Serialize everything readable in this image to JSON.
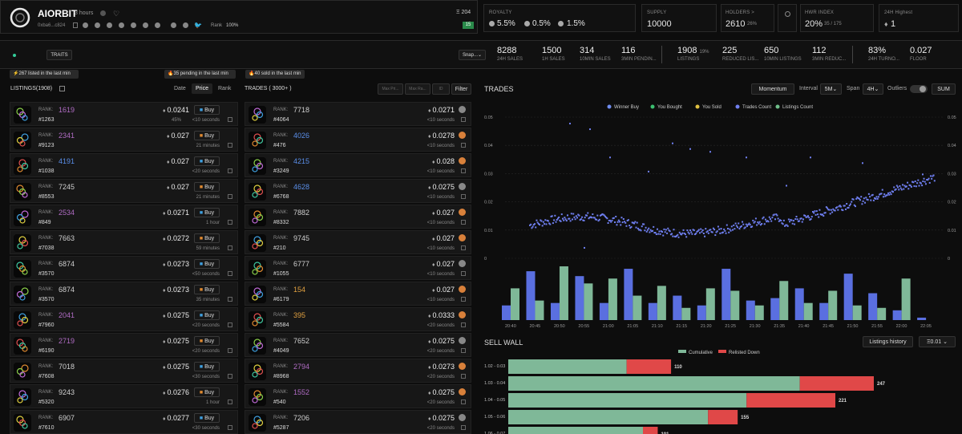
{
  "header": {
    "name": "AIORBIT",
    "age": "3 hours",
    "address": "0xba6...c824",
    "rank_label": "Rank",
    "rank_value": "100%",
    "count_label": "Ξ 204",
    "count_badge": "15"
  },
  "stats": {
    "royalty": {
      "label": "ROYALTY",
      "v1": "5.5%",
      "v2": "0.5%",
      "v3": "1.5%"
    },
    "supply": {
      "label": "SUPPLY",
      "value": "10000"
    },
    "holders": {
      "label": "HOLDERS >",
      "value": "2610",
      "sub": "26%"
    },
    "hwr": {
      "label": "HWR INDEX",
      "value": "20%",
      "sub": "35 / 175"
    },
    "high": {
      "label": "24H Highest",
      "value": "1"
    }
  },
  "toolbar": {
    "traits_label": "TRAITS",
    "snap_label": "Snap..."
  },
  "metrics": [
    {
      "value": "8288",
      "label": "24H SALES"
    },
    {
      "value": "1500",
      "label": "1H SALES"
    },
    {
      "value": "314",
      "label": "10MIN SALES"
    },
    {
      "value": "116",
      "label": "3MIN PENDIN..."
    },
    {
      "value": "1908",
      "sub": "19%",
      "label": "LISTINGS"
    },
    {
      "value": "225",
      "label": "REDUCED LIS..."
    },
    {
      "value": "650",
      "label": "10MIN LISTINGS"
    },
    {
      "value": "112",
      "label": "3MIN REDUC..."
    },
    {
      "value": "83%",
      "label": "24H TURNO..."
    },
    {
      "value": "0.027",
      "label": "FLOOR"
    }
  ],
  "alerts": {
    "listed": "267 listed in the last min",
    "pending": "35 pending in the last min",
    "sold": "40 sold in the last min"
  },
  "listings": {
    "title": "LISTINGS(1908)",
    "sort_date": "Date",
    "sort_price": "Price",
    "sort_rank": "Rank",
    "rank_label": "RANK:",
    "buy_label": "Buy",
    "rows": [
      {
        "rank": "1619",
        "rank_color": "#b06cc4",
        "token": "#1263",
        "price": "0.0241",
        "time": "<10 seconds",
        "extra": "45%"
      },
      {
        "rank": "2341",
        "rank_color": "#b06cc4",
        "token": "#9123",
        "price": "0.027",
        "time": "21 minutes",
        "extra": ""
      },
      {
        "rank": "4191",
        "rank_color": "#5a8ee8",
        "token": "#1038",
        "price": "0.027",
        "time": "<20 seconds",
        "extra": ""
      },
      {
        "rank": "7245",
        "rank_color": "#cfcfcf",
        "token": "#8553",
        "price": "0.027",
        "time": "21 minutes",
        "extra": ""
      },
      {
        "rank": "2534",
        "rank_color": "#b06cc4",
        "token": "#849",
        "price": "0.0271",
        "time": "1 hour",
        "extra": ""
      },
      {
        "rank": "7663",
        "rank_color": "#cfcfcf",
        "token": "#7038",
        "price": "0.0272",
        "time": "59 minutes",
        "extra": ""
      },
      {
        "rank": "6874",
        "rank_color": "#cfcfcf",
        "token": "#3570",
        "price": "0.0273",
        "time": "<50 seconds",
        "extra": ""
      },
      {
        "rank": "6874",
        "rank_color": "#cfcfcf",
        "token": "#3570",
        "price": "0.0273",
        "time": "35 minutes",
        "extra": ""
      },
      {
        "rank": "2041",
        "rank_color": "#b06cc4",
        "token": "#7960",
        "price": "0.0275",
        "time": "<20 seconds",
        "extra": ""
      },
      {
        "rank": "2719",
        "rank_color": "#b06cc4",
        "token": "#6190",
        "price": "0.0275",
        "time": "<20 seconds",
        "extra": ""
      },
      {
        "rank": "7018",
        "rank_color": "#cfcfcf",
        "token": "#7608",
        "price": "0.0275",
        "time": "<30 seconds",
        "extra": ""
      },
      {
        "rank": "9243",
        "rank_color": "#cfcfcf",
        "token": "#5320",
        "price": "0.0276",
        "time": "1 hour",
        "extra": ""
      },
      {
        "rank": "6907",
        "rank_color": "#cfcfcf",
        "token": "#7610",
        "price": "0.0277",
        "time": "<30 seconds",
        "extra": ""
      }
    ]
  },
  "trades": {
    "title": "TRADES ( 3000+ )",
    "filters": {
      "max_price": "Max Pri...",
      "max_rank": "Max Ra...",
      "id": "ID",
      "filter": "Filter"
    },
    "rank_label": "RANK:",
    "rows": [
      {
        "rank": "7718",
        "rank_color": "#cfcfcf",
        "token": "#4064",
        "price": "0.0271",
        "time": "<10 seconds"
      },
      {
        "rank": "4026",
        "rank_color": "#5a8ee8",
        "token": "#476",
        "price": "0.0278",
        "time": "<10 seconds"
      },
      {
        "rank": "4215",
        "rank_color": "#5a8ee8",
        "token": "#3249",
        "price": "0.028",
        "time": "<10 seconds"
      },
      {
        "rank": "4628",
        "rank_color": "#5a8ee8",
        "token": "#6768",
        "price": "0.0275",
        "time": "<10 seconds"
      },
      {
        "rank": "7882",
        "rank_color": "#cfcfcf",
        "token": "#8332",
        "price": "0.027",
        "time": "<10 seconds"
      },
      {
        "rank": "9745",
        "rank_color": "#cfcfcf",
        "token": "#210",
        "price": "0.027",
        "time": "<10 seconds"
      },
      {
        "rank": "6777",
        "rank_color": "#cfcfcf",
        "token": "#1055",
        "price": "0.027",
        "time": "<10 seconds"
      },
      {
        "rank": "154",
        "rank_color": "#e0a040",
        "token": "#6179",
        "price": "0.027",
        "time": "<10 seconds"
      },
      {
        "rank": "395",
        "rank_color": "#e0a040",
        "token": "#5584",
        "price": "0.0333",
        "time": "<20 seconds"
      },
      {
        "rank": "7652",
        "rank_color": "#cfcfcf",
        "token": "#4049",
        "price": "0.0275",
        "time": "<20 seconds"
      },
      {
        "rank": "2794",
        "rank_color": "#b06cc4",
        "token": "#8968",
        "price": "0.0273",
        "time": "<20 seconds"
      },
      {
        "rank": "1552",
        "rank_color": "#b06cc4",
        "token": "#540",
        "price": "0.0275",
        "time": "<20 seconds"
      },
      {
        "rank": "7206",
        "rank_color": "#cfcfcf",
        "token": "#5287",
        "price": "0.0275",
        "time": "<20 seconds"
      }
    ]
  },
  "chart_panel": {
    "title": "TRADES",
    "momentum": "Momentum",
    "interval_label": "Interval",
    "interval_value": "5M",
    "span_label": "Span",
    "span_value": "4H",
    "outliers": "Outliers",
    "sum": "SUM"
  },
  "chart_data": [
    {
      "type": "scatter",
      "legend": [
        "Winner Buy",
        "You Bought",
        "You Sold",
        "Trades Count",
        "Listings Count"
      ],
      "y_ticks": [
        "0.05",
        "0.04",
        "0.03",
        "0.02",
        "0.01",
        "0"
      ],
      "ylim": [
        0,
        0.05
      ],
      "x_ticks": [
        "20:40",
        "20:45",
        "20:50",
        "20:55",
        "21:00",
        "21:05",
        "21:10",
        "21:15",
        "21:20",
        "21:25",
        "21:30",
        "21:35",
        "21:40",
        "21:45",
        "21:50",
        "21:55",
        "22:00",
        "22:05"
      ],
      "bars": {
        "trades": [
          6,
          20,
          7,
          18,
          7,
          21,
          7,
          10,
          6,
          21,
          8,
          9,
          13,
          7,
          19,
          11,
          4,
          1
        ],
        "listings": [
          13,
          8,
          22,
          15,
          17,
          10,
          14,
          5,
          13,
          12,
          6,
          16,
          7,
          12,
          6,
          5,
          17,
          0
        ]
      }
    },
    {
      "type": "bar",
      "title": "SELL WALL",
      "legend": [
        "Cumulative",
        "Relisted Down"
      ],
      "categories": [
        "1.02 - 0.03",
        "1.03 - 0.04",
        "1.04 - 0.05",
        "1.05 - 0.06",
        "1.06 - 0.07"
      ],
      "values": [
        110,
        247,
        221,
        155,
        101
      ]
    }
  ],
  "sell_wall": {
    "title": "SELL WALL",
    "history": "Listings history",
    "step": "Ξ0.01"
  }
}
